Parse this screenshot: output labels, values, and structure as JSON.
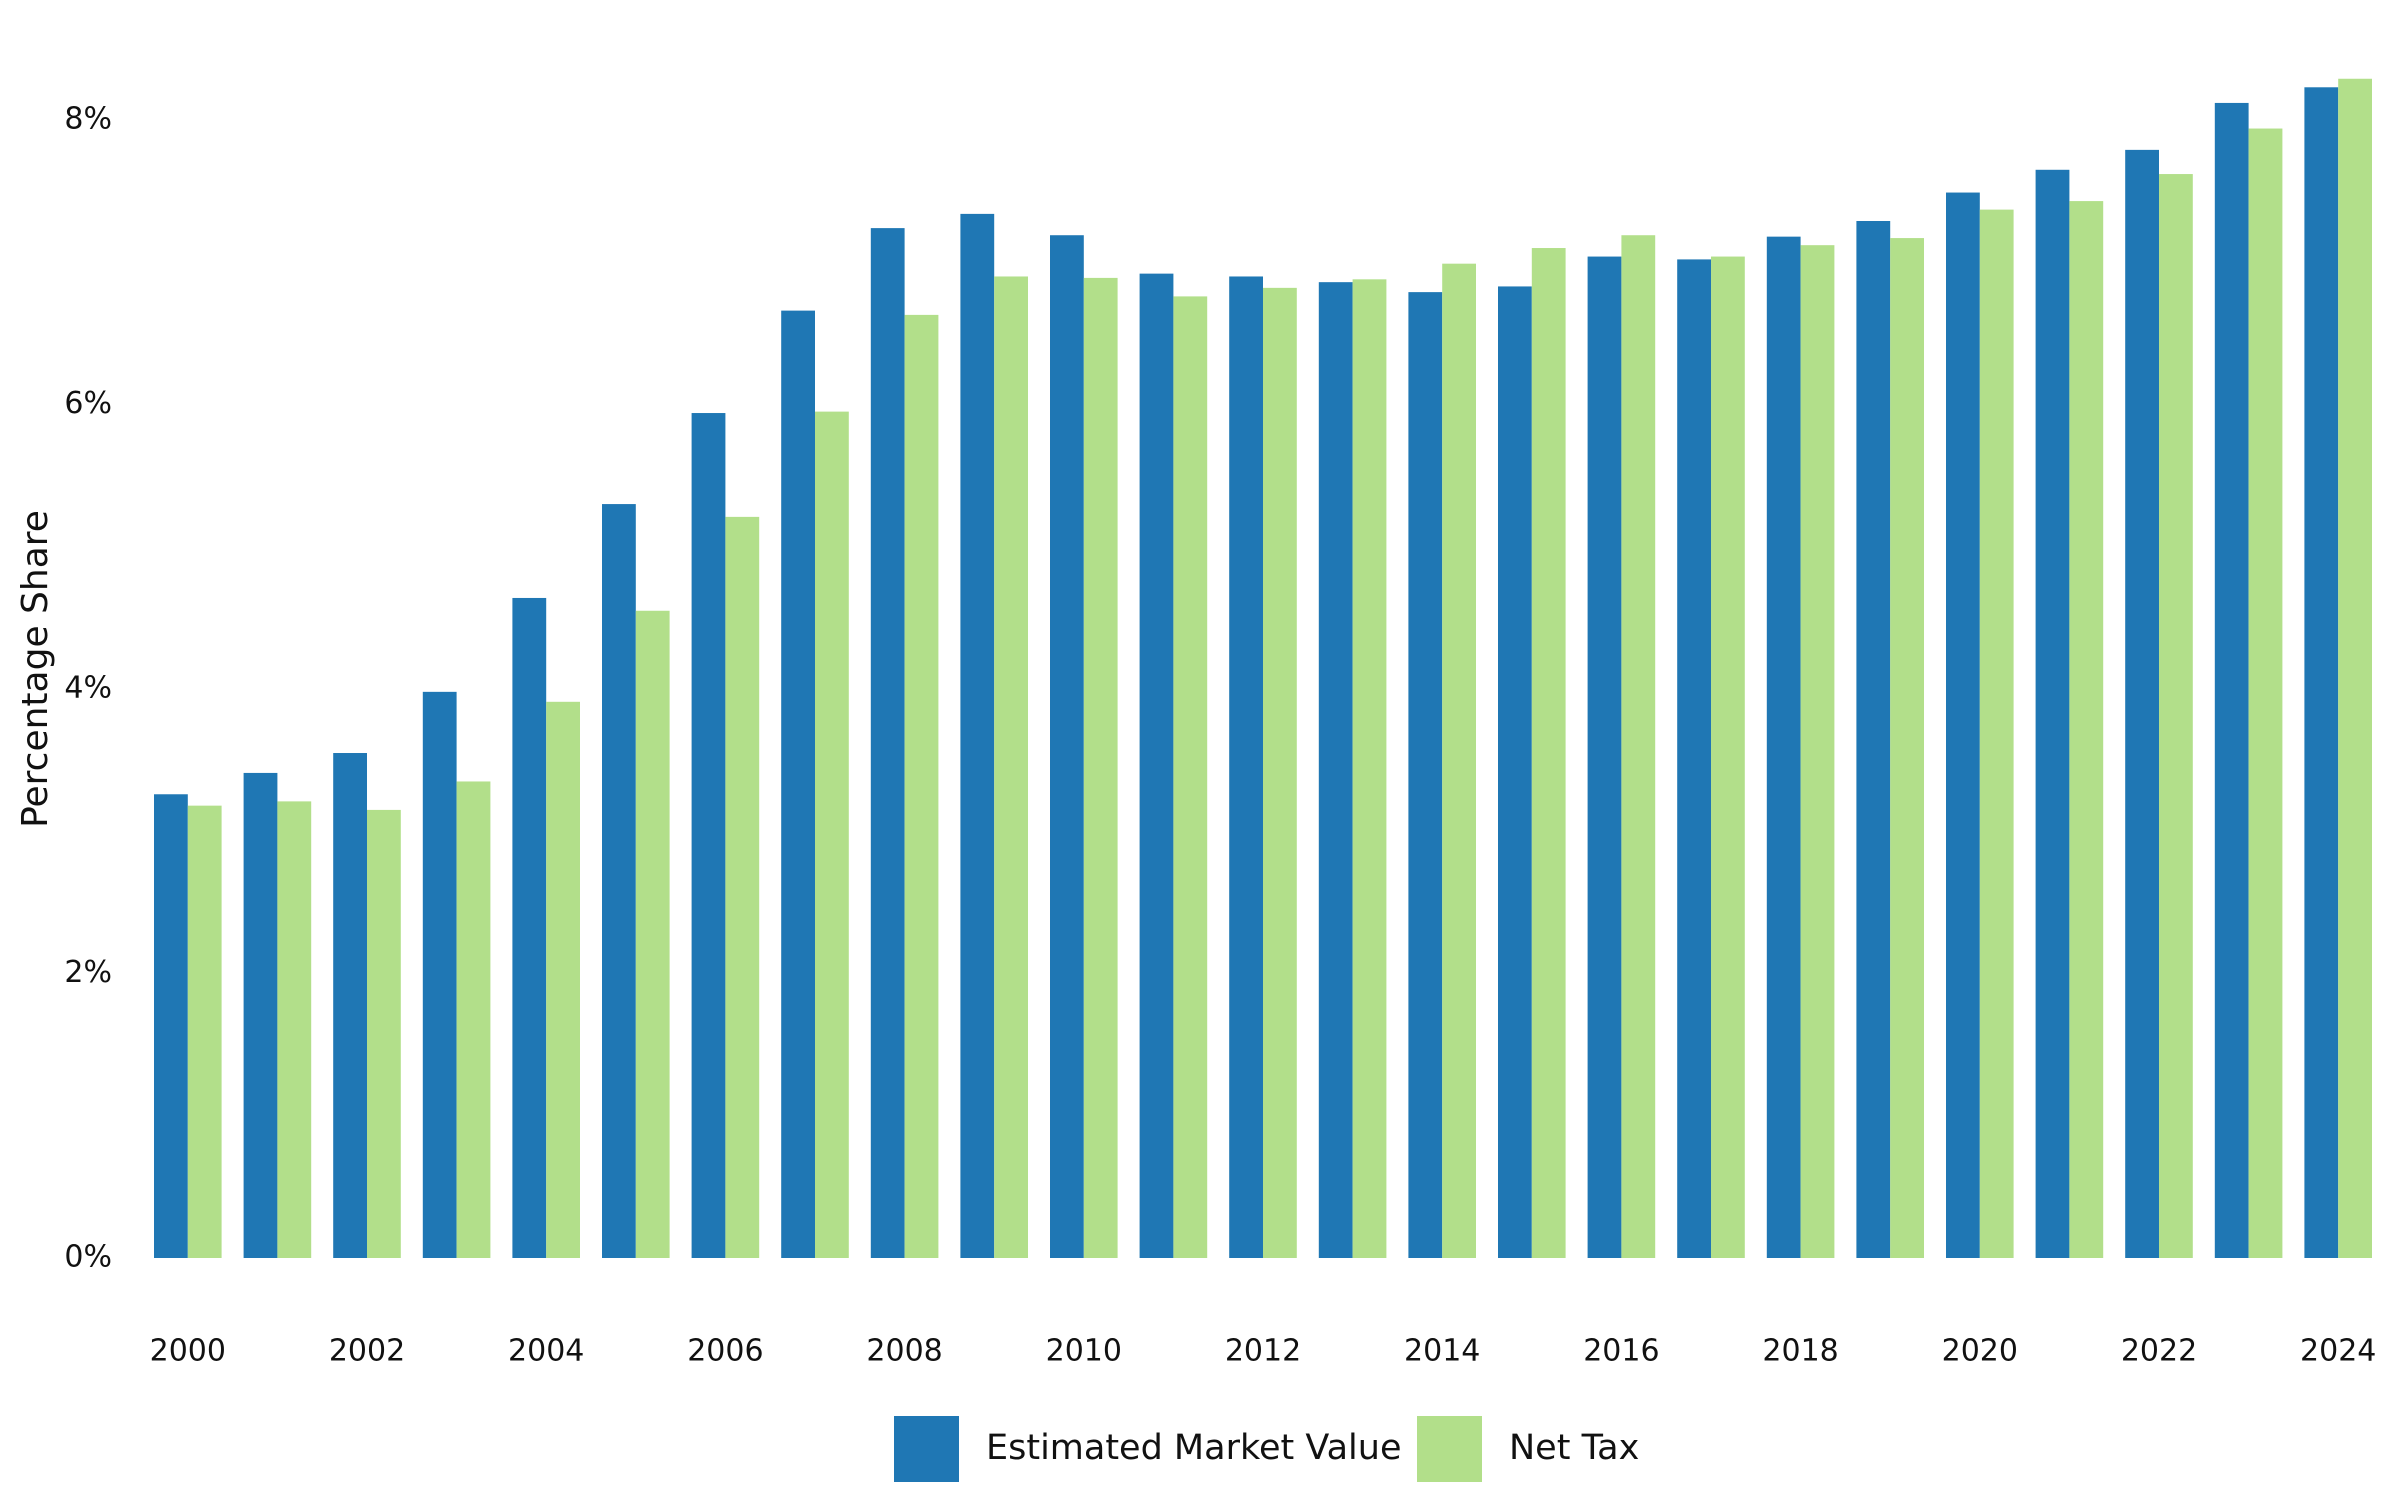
{
  "chart_data": {
    "type": "bar",
    "y_label": "Percentage Share",
    "categories": [
      "2000",
      null,
      "2002",
      null,
      "2004",
      null,
      "2006",
      null,
      "2008",
      null,
      "2010",
      null,
      "2012",
      null,
      "2014",
      null,
      "2016",
      null,
      "2018",
      null,
      "2020",
      null,
      "2022",
      null,
      "2024"
    ],
    "series": [
      {
        "name": "Estimated Market Value",
        "color": "#1f77b4",
        "values": [
          3.26,
          3.41,
          3.55,
          3.98,
          4.64,
          5.3,
          5.94,
          6.66,
          7.24,
          7.34,
          7.19,
          6.92,
          6.9,
          6.86,
          6.79,
          6.83,
          7.04,
          7.02,
          7.18,
          7.29,
          7.49,
          7.65,
          7.79,
          8.12,
          8.23
        ]
      },
      {
        "name": "Net Tax",
        "color": "#b2df8a",
        "values": [
          3.18,
          3.21,
          3.15,
          3.35,
          3.91,
          4.55,
          5.21,
          5.95,
          6.63,
          6.9,
          6.89,
          6.76,
          6.82,
          6.88,
          6.99,
          7.1,
          7.19,
          7.04,
          7.12,
          7.17,
          7.37,
          7.43,
          7.62,
          7.94,
          8.29
        ]
      }
    ],
    "ylim": [
      0,
      8.4
    ],
    "yticks": [
      {
        "value": 0,
        "label": "0%"
      },
      {
        "value": 2,
        "label": "2%"
      },
      {
        "value": 4,
        "label": "4%"
      },
      {
        "value": 6,
        "label": "6%"
      },
      {
        "value": 8,
        "label": "8%"
      }
    ],
    "grid": false,
    "legend": "bottom"
  }
}
